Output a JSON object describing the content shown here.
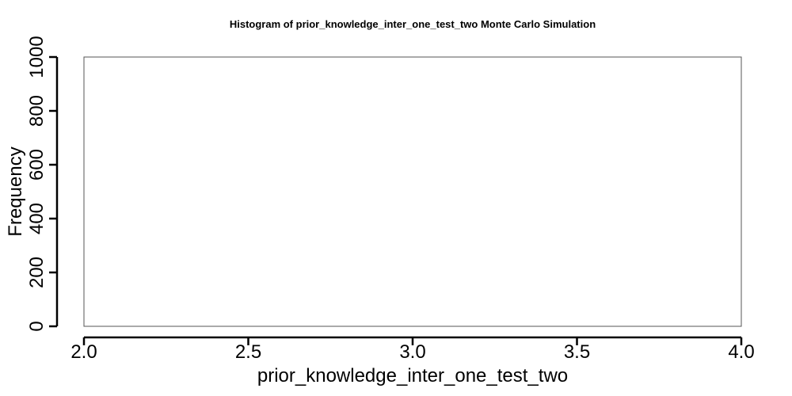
{
  "chart_data": {
    "type": "bar",
    "title": "Histogram of  prior_knowledge_inter_one_test_two  Monte Carlo Simulation",
    "xlabel": "prior_knowledge_inter_one_test_two",
    "ylabel": "Frequency",
    "xlim": [
      2.0,
      4.0
    ],
    "ylim": [
      0,
      1000
    ],
    "xticks": [
      "2.0",
      "2.5",
      "3.0",
      "3.5",
      "4.0"
    ],
    "yticks": [
      "0",
      "200",
      "400",
      "600",
      "800",
      "1000"
    ],
    "bins": [],
    "grid": false,
    "legend": "none"
  }
}
